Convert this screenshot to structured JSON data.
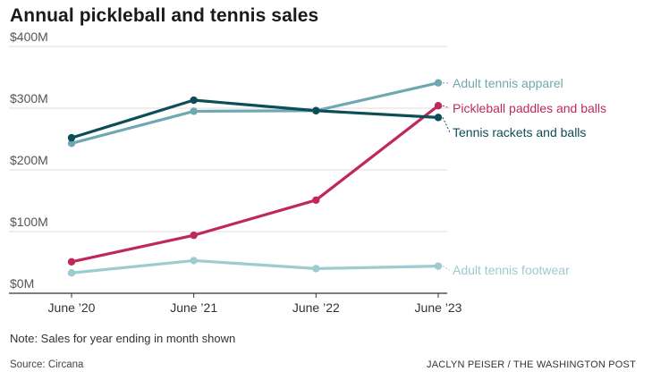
{
  "chart_data": {
    "type": "line",
    "title": "Annual pickleball and tennis sales",
    "categories": [
      "June ’20",
      "June ’21",
      "June ’22",
      "June ’23"
    ],
    "ylim": [
      0,
      400
    ],
    "yticks": [
      {
        "value": 0,
        "label": "$0M"
      },
      {
        "value": 100,
        "label": "$100M"
      },
      {
        "value": 200,
        "label": "$200M"
      },
      {
        "value": 300,
        "label": "$300M"
      },
      {
        "value": 400,
        "label": "$400M"
      }
    ],
    "grid": "horizontal",
    "legend": "direct labels at right end of each line",
    "series": [
      {
        "name": "Adult tennis apparel",
        "color": "#6fa8b0",
        "values": [
          243,
          295,
          296,
          341
        ]
      },
      {
        "name": "Pickleball paddles and balls",
        "color": "#c0285a",
        "values": [
          51,
          94,
          151,
          304
        ]
      },
      {
        "name": "Tennis rackets and balls",
        "color": "#0d4d55",
        "values": [
          252,
          313,
          296,
          285
        ]
      },
      {
        "name": "Adult tennis footwear",
        "color": "#9ccbd0",
        "values": [
          33,
          53,
          40,
          44
        ]
      }
    ]
  },
  "footer": {
    "note": "Note: Sales for year ending in month shown",
    "source": "Source: Circana",
    "credit": "JACLYN PEISER / THE WASHINGTON POST"
  }
}
